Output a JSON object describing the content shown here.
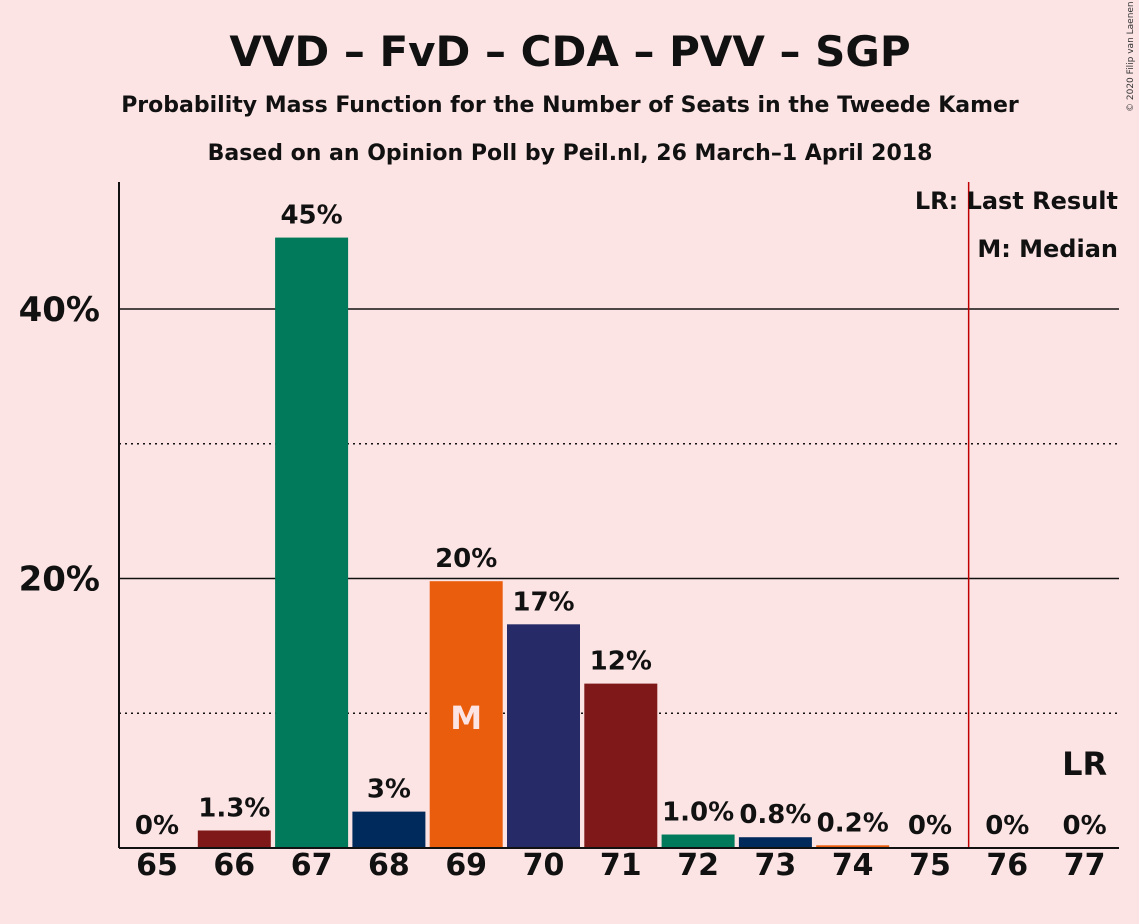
{
  "title": "VVD – FvD – CDA – PVV – SGP",
  "subtitle1": "Probability Mass Function for the Number of Seats in the Tweede Kamer",
  "subtitle2": "Based on an Opinion Poll by Peil.nl, 26 March–1 April 2018",
  "copyright": "© 2020 Filip van Laenen",
  "legend": {
    "last_result": "LR: Last Result",
    "median": "M: Median"
  },
  "chart_data": {
    "type": "bar",
    "categories": [
      "65",
      "66",
      "67",
      "68",
      "69",
      "70",
      "71",
      "72",
      "73",
      "74",
      "75",
      "76",
      "77"
    ],
    "values": [
      0,
      1.3,
      45.3,
      2.7,
      19.8,
      16.6,
      12.2,
      1.0,
      0.8,
      0.2,
      0,
      0,
      0
    ],
    "value_labels": [
      "0%",
      "1.3%",
      "45%",
      "3%",
      "20%",
      "17%",
      "12%",
      "1.0%",
      "0.8%",
      "0.2%",
      "0%",
      "0%",
      "0%"
    ],
    "colors": [
      "#7f1818",
      "#7f1818",
      "#007a5a",
      "#002a5c",
      "#ea5d0d",
      "#262a66",
      "#7f1818",
      "#007a5a",
      "#002a5c",
      "#ea5d0d",
      "#262a66",
      "#7f1818",
      "#007a5a"
    ],
    "yticks": [
      {
        "value": 20,
        "label": "20%"
      },
      {
        "value": 40,
        "label": "40%"
      }
    ],
    "minor_gridlines": [
      10,
      30
    ],
    "ylim": [
      0,
      49
    ],
    "median_index": 4,
    "median_label": "M",
    "last_result_index": 12,
    "last_result_label": "LR",
    "last_result_line_color": "#c00000"
  }
}
